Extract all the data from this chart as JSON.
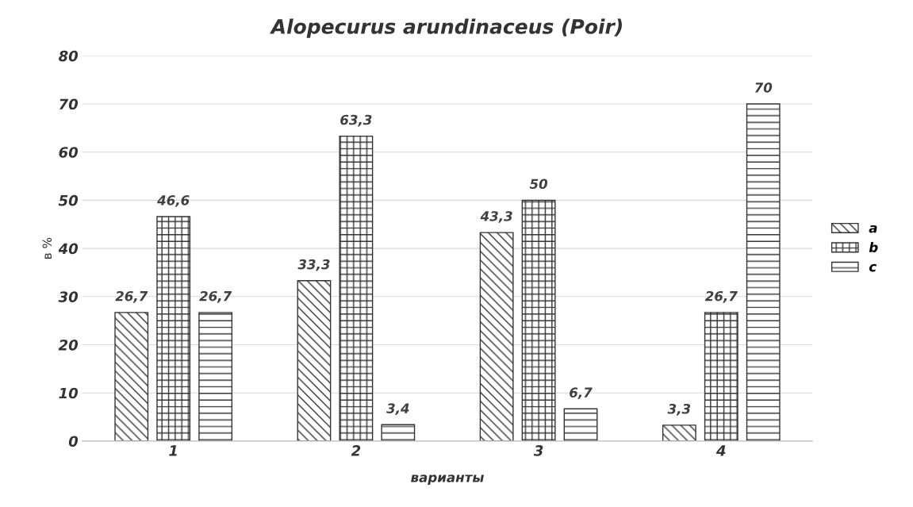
{
  "chart_data": {
    "type": "bar",
    "title": "Alopecurus arundinaceus (Poir)",
    "xlabel": "варианты",
    "ylabel": "в %",
    "categories": [
      "1",
      "2",
      "3",
      "4"
    ],
    "series": [
      {
        "name": "a",
        "color": "#333333",
        "values": [
          26.7,
          33.3,
          43.3,
          3.3
        ],
        "value_labels": [
          "26,7",
          "33,3",
          "43,3",
          "3,3"
        ]
      },
      {
        "name": "b",
        "color": "#333333",
        "values": [
          46.6,
          63.3,
          50,
          26.7
        ],
        "value_labels": [
          "46,6",
          "63,3",
          "50",
          "26,7"
        ]
      },
      {
        "name": "c",
        "color": "#333333",
        "values": [
          26.7,
          3.4,
          6.7,
          70
        ],
        "value_labels": [
          "26,7",
          "3,4",
          "6,7",
          "70"
        ]
      }
    ],
    "ylim": [
      0,
      80
    ],
    "yticks": [
      0,
      10,
      20,
      30,
      40,
      50,
      60,
      70,
      80
    ],
    "grid": "y",
    "legend": "right"
  }
}
